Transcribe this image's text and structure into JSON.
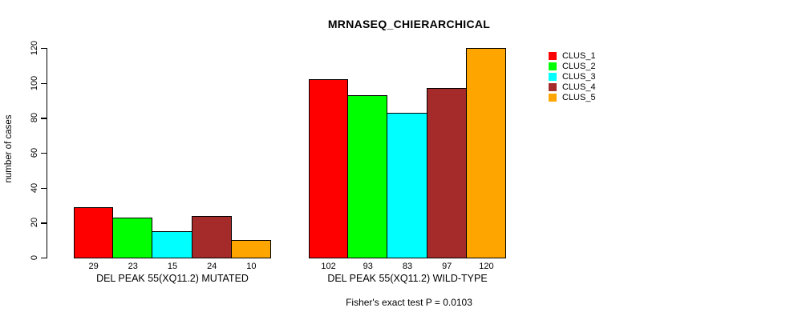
{
  "chart_data": {
    "type": "bar",
    "title": "MRNASEQ_CHIERARCHICAL",
    "ylabel": "number of cases",
    "xlabel": "",
    "categories": [
      "DEL PEAK 55(XQ11.2) MUTATED",
      "DEL PEAK 55(XQ11.2) WILD-TYPE"
    ],
    "series": [
      {
        "name": "CLUS_1",
        "color": "#FF0000",
        "values": [
          29,
          102
        ]
      },
      {
        "name": "CLUS_2",
        "color": "#00FF00",
        "values": [
          23,
          93
        ]
      },
      {
        "name": "CLUS_3",
        "color": "#00FFFF",
        "values": [
          15,
          83
        ]
      },
      {
        "name": "CLUS_4",
        "color": "#A52A2A",
        "values": [
          24,
          97
        ]
      },
      {
        "name": "CLUS_5",
        "color": "#FFA500",
        "values": [
          10,
          120
        ]
      }
    ],
    "ylim": [
      0,
      120
    ],
    "yticks": [
      0,
      20,
      40,
      60,
      80,
      100,
      120
    ],
    "bar_value_labels": true,
    "grid": false,
    "legend_position": "right-inside",
    "annotation": "Fisher's exact test P = 0.0103"
  }
}
